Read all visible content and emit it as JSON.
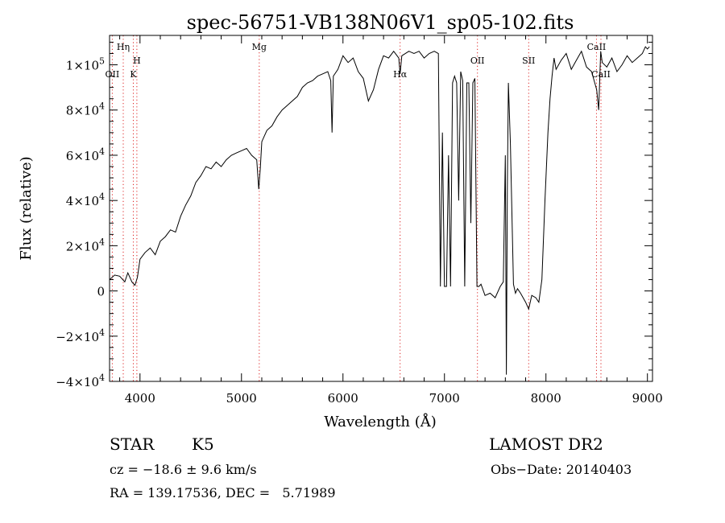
{
  "chart_data": {
    "type": "line",
    "title": "spec-56751-VB138N06V1_sp05-102.fits",
    "xlabel": "Wavelength (Å)",
    "ylabel": "Flux (relative)",
    "xlim": [
      3700,
      9050
    ],
    "ylim": [
      -40000,
      113000
    ],
    "grid": false,
    "x_ticks": [
      {
        "value": 4000,
        "label": "4000"
      },
      {
        "value": 5000,
        "label": "5000"
      },
      {
        "value": 6000,
        "label": "6000"
      },
      {
        "value": 7000,
        "label": "7000"
      },
      {
        "value": 8000,
        "label": "8000"
      },
      {
        "value": 9000,
        "label": "9000"
      }
    ],
    "y_ticks": [
      {
        "value": -40000,
        "mant": "−4×10",
        "exp": "4"
      },
      {
        "value": -20000,
        "mant": "−2×10",
        "exp": "4"
      },
      {
        "value": 0,
        "mant": "0",
        "exp": ""
      },
      {
        "value": 20000,
        "mant": "2×10",
        "exp": "4"
      },
      {
        "value": 40000,
        "mant": "4×10",
        "exp": "4"
      },
      {
        "value": 60000,
        "mant": "6×10",
        "exp": "4"
      },
      {
        "value": 80000,
        "mant": "8×10",
        "exp": "4"
      },
      {
        "value": 100000,
        "mant": "1×10",
        "exp": "5"
      }
    ],
    "lines": [
      {
        "wavelength": 3727,
        "label": "OII",
        "level": "low"
      },
      {
        "wavelength": 3835,
        "label": "Hη",
        "level": "high"
      },
      {
        "wavelength": 3934,
        "label": "K",
        "level": "low"
      },
      {
        "wavelength": 3969,
        "label": "H",
        "level": "mid"
      },
      {
        "wavelength": 5175,
        "label": "Mg",
        "level": "high"
      },
      {
        "wavelength": 6563,
        "label": "Hα",
        "level": "low"
      },
      {
        "wavelength": 7325,
        "label": "OII",
        "level": "mid"
      },
      {
        "wavelength": 7830,
        "label": "SII",
        "level": "mid"
      },
      {
        "wavelength": 8498,
        "label": "CaII",
        "level": "high"
      },
      {
        "wavelength": 8542,
        "label": "CaII",
        "level": "low"
      }
    ],
    "series": [
      {
        "x": [
          3700,
          3750,
          3800,
          3850,
          3880,
          3920,
          3950,
          3975,
          4000,
          4050,
          4100,
          4150,
          4200,
          4250,
          4300,
          4350,
          4400,
          4450,
          4500,
          4550,
          4600,
          4650,
          4700,
          4750,
          4800,
          4850,
          4900,
          4950,
          5000,
          5050,
          5100,
          5150,
          5170,
          5185,
          5200,
          5250,
          5300,
          5350,
          5400,
          5450,
          5500,
          5550,
          5600,
          5650,
          5700,
          5750,
          5800,
          5850,
          5880,
          5892,
          5905,
          5950,
          6000,
          6050,
          6100,
          6150,
          6200,
          6250,
          6300,
          6350,
          6400,
          6450,
          6500,
          6550,
          6563,
          6580,
          6650,
          6700,
          6750,
          6800,
          6850,
          6900,
          6940,
          6960,
          6980,
          7000,
          7020,
          7040,
          7060,
          7080,
          7100,
          7120,
          7140,
          7160,
          7180,
          7200,
          7220,
          7240,
          7260,
          7280,
          7300,
          7320,
          7340,
          7360,
          7400,
          7450,
          7500,
          7550,
          7580,
          7600,
          7610,
          7620,
          7630,
          7650,
          7680,
          7700,
          7720,
          7750,
          7800,
          7830,
          7860,
          7900,
          7930,
          7960,
          7990,
          8020,
          8040,
          8060,
          8080,
          8100,
          8150,
          8200,
          8250,
          8300,
          8350,
          8400,
          8450,
          8500,
          8520,
          8540,
          8555,
          8600,
          8650,
          8700,
          8750,
          8800,
          8850,
          8900,
          8950,
          8980,
          9000,
          9020
        ],
        "y": [
          5000,
          7000,
          6500,
          4000,
          8000,
          4000,
          2500,
          6000,
          14000,
          17000,
          19000,
          16000,
          22000,
          24000,
          27000,
          26000,
          33000,
          38000,
          42000,
          48000,
          51000,
          55000,
          54000,
          57000,
          55000,
          58000,
          60000,
          61000,
          62000,
          63000,
          60000,
          58000,
          45000,
          54000,
          66000,
          71000,
          73000,
          77000,
          80000,
          82000,
          84000,
          86000,
          90000,
          92000,
          93000,
          95000,
          96000,
          97000,
          93000,
          70000,
          95000,
          98000,
          104000,
          101000,
          103000,
          97000,
          94000,
          84000,
          89000,
          98000,
          104000,
          103000,
          106000,
          103000,
          96000,
          104000,
          106000,
          105000,
          106000,
          103000,
          105000,
          106000,
          105000,
          2000,
          70000,
          2000,
          2000,
          60000,
          2000,
          92000,
          95000,
          92000,
          40000,
          97000,
          93000,
          2000,
          92000,
          92000,
          30000,
          92000,
          94000,
          2000,
          2000,
          3000,
          -2000,
          -1000,
          -3000,
          2000,
          4000,
          60000,
          -37000,
          45000,
          92000,
          65000,
          3000,
          -1000,
          1000,
          -1000,
          -5000,
          -8000,
          -2000,
          -3000,
          -5000,
          5000,
          40000,
          70000,
          85000,
          95000,
          103000,
          98000,
          102000,
          105000,
          98000,
          102000,
          106000,
          99000,
          97000,
          89000,
          80000,
          106000,
          101000,
          99000,
          103000,
          97000,
          100000,
          104000,
          101000,
          103000,
          105000,
          108000,
          107000,
          108000
        ]
      }
    ]
  },
  "info": {
    "class": "STAR",
    "subclass": "K5",
    "survey": "LAMOST DR2",
    "cz": "cz = −18.6 ± 9.6 km/s",
    "obs_date": "Obs−Date: 20140403",
    "coords": "RA = 139.17536, DEC =   5.71989"
  }
}
